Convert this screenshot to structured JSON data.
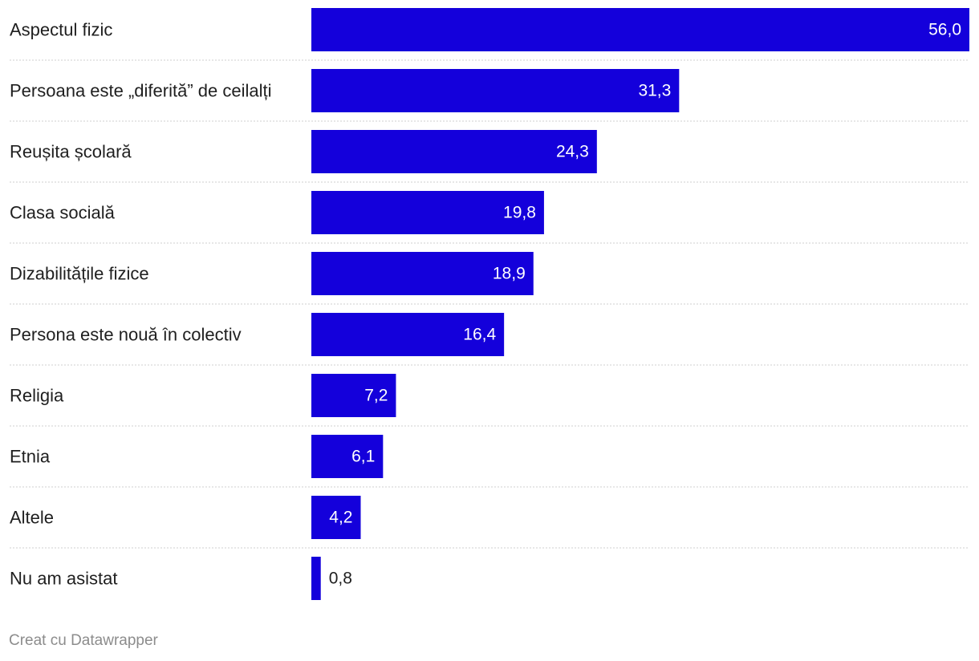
{
  "chart_data": {
    "type": "bar",
    "orientation": "horizontal",
    "categories": [
      "Aspectul fizic",
      "Persoana este „diferită” de ceilalți",
      "Reușita școlară",
      "Clasa socială",
      "Dizabilitățile fizice",
      "Persona este nouă în colectiv",
      "Religia",
      "Etnia",
      "Altele",
      "Nu am asistat"
    ],
    "values": [
      56.0,
      31.3,
      24.3,
      19.8,
      18.9,
      16.4,
      7.2,
      6.1,
      4.2,
      0.8
    ],
    "value_labels": [
      "56,0",
      "31,3",
      "24,3",
      "19,8",
      "18,9",
      "16,4",
      "7,2",
      "6,1",
      "4,2",
      "0,8"
    ],
    "xlim": [
      0,
      56.0
    ],
    "title": "",
    "xlabel": "",
    "ylabel": "",
    "bar_color": "#1400db",
    "grid": false
  },
  "footer": {
    "credit": "Creat cu Datawrapper"
  }
}
